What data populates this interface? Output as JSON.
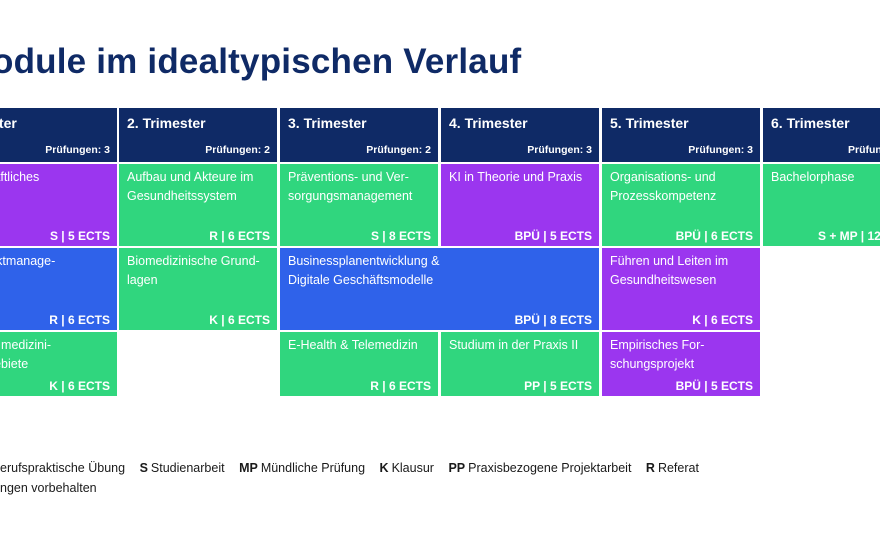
{
  "title": "odule im idealtypischen Verlauf",
  "colors": {
    "navy": "#0f2a66",
    "green": "#30d67e",
    "purple": "#9b36ef",
    "blue": "#2f62ea"
  },
  "trimesters": [
    {
      "name": "imester",
      "exams": "Prüfungen: 3"
    },
    {
      "name": "2. Trimester",
      "exams": "Prüfungen: 2"
    },
    {
      "name": "3. Trimester",
      "exams": "Prüfungen: 2"
    },
    {
      "name": "4. Trimester",
      "exams": "Prüfungen: 3"
    },
    {
      "name": "5. Trimester",
      "exams": "Prüfungen: 3"
    },
    {
      "name": "6. Trimester",
      "exams": "Prüfun"
    }
  ],
  "modules": {
    "t1_r1": {
      "name": "nschaftliches\nen",
      "meta": "S | 5 ECTS",
      "color": "purple"
    },
    "t1_r2": {
      "name": " Projektmanage-",
      "meta": "R | 6 ECTS",
      "color": "blue"
    },
    "t1_r3": {
      "name": "neine medizini-\nachgebiete",
      "meta": "K | 6 ECTS",
      "color": "green"
    },
    "t2_r1": {
      "name": "Aufbau und Akteure im\nGesundheitssystem",
      "meta": "R | 6 ECTS",
      "color": "green"
    },
    "t2_r2": {
      "name": "Biomedizinische Grund-\nlagen",
      "meta": "K | 6 ECTS",
      "color": "green"
    },
    "t3_r1": {
      "name": "Präventions- und Ver-\nsorgungsmanagement",
      "meta": "S | 8 ECTS",
      "color": "green"
    },
    "t34_r2": {
      "name": "Businessplanentwicklung &\nDigitale Geschäftsmodelle",
      "meta": "BPÜ | 8 ECTS",
      "color": "blue"
    },
    "t3_r3": {
      "name": "E-Health & Telemedizin",
      "meta": "R | 6 ECTS",
      "color": "green"
    },
    "t4_r1": {
      "name": "KI in Theorie und Praxis",
      "meta": "BPÜ | 5 ECTS",
      "color": "purple"
    },
    "t4_r3": {
      "name": "Studium in der Praxis II",
      "meta": "PP | 5 ECTS",
      "color": "green"
    },
    "t5_r1": {
      "name": "Organisations- und\nProzesskompetenz",
      "meta": "BPÜ | 6 ECTS",
      "color": "green"
    },
    "t5_r2": {
      "name": "Führen und Leiten im\nGesundheitswesen",
      "meta": "K | 6 ECTS",
      "color": "purple"
    },
    "t5_r3": {
      "name": "Empirisches For-\nschungsprojekt",
      "meta": "BPÜ | 5 ECTS",
      "color": "purple"
    },
    "t6_r1": {
      "name": "Bachelorphase",
      "meta": "S + MP | 12",
      "color": "green"
    }
  },
  "legend": [
    {
      "abbr": "",
      "label": "erufspraktische Übung"
    },
    {
      "abbr": "S",
      "label": "Studienarbeit"
    },
    {
      "abbr": "MP",
      "label": "Mündliche Prüfung"
    },
    {
      "abbr": "K",
      "label": "Klausur"
    },
    {
      "abbr": "PP",
      "label": "Praxisbezogene Projektarbeit"
    },
    {
      "abbr": "R",
      "label": "Referat"
    }
  ],
  "note": "ngen vorbehalten"
}
